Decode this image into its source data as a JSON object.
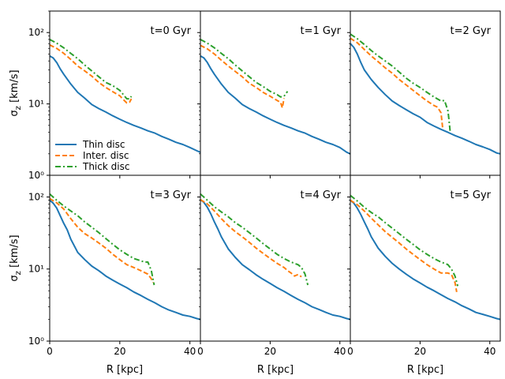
{
  "chart_data": {
    "type": "line",
    "layout": "2x3 grid of panels with shared axes",
    "xlabel": "R [kpc]",
    "ylabel": "σ_z [km/s]",
    "xlim": [
      0,
      43
    ],
    "ylim": [
      1,
      200
    ],
    "yscale": "log",
    "x_ticks": [
      {
        "value": 0,
        "label": "0"
      },
      {
        "value": 20,
        "label": "20"
      },
      {
        "value": 40,
        "label": "40"
      }
    ],
    "y_ticks": [
      {
        "value": 1,
        "label": "10⁰"
      },
      {
        "value": 10,
        "label": "10¹"
      },
      {
        "value": 100,
        "label": "10²"
      }
    ],
    "legend": {
      "location": "lower-left of first panel",
      "entries": [
        {
          "label": "Thin disc",
          "color": "#1f77b4",
          "dash": "solid"
        },
        {
          "label": "Inter. disc",
          "color": "#ff7f0e",
          "dash": "dashed"
        },
        {
          "label": "Thick disc",
          "color": "#2ca02c",
          "dash": "dashdot"
        }
      ]
    },
    "panels": [
      {
        "label": "t=0 Gyr",
        "series": [
          {
            "name": "Thin disc",
            "x": [
              0,
              1,
              2,
              3,
              4,
              6,
              8,
              10,
              12,
              14,
              16,
              18,
              20,
              22,
              24,
              26,
              28,
              30,
              32,
              34,
              36,
              38,
              40,
              42,
              43
            ],
            "y": [
              47,
              44,
              38,
              31,
              26,
              19,
              14.5,
              12,
              9.8,
              8.6,
              7.7,
              6.8,
              6.1,
              5.5,
              5.0,
              4.6,
              4.2,
              3.9,
              3.5,
              3.2,
              2.9,
              2.7,
              2.45,
              2.2,
              2.1
            ]
          },
          {
            "name": "Inter. disc",
            "x": [
              0,
              2,
              4,
              6,
              8,
              10,
              12,
              14,
              16,
              18,
              20,
              21,
              22,
              22.8,
              23.3
            ],
            "y": [
              67,
              60,
              51,
              42,
              34,
              29,
              24.5,
              20,
              17,
              14.8,
              13,
              11.5,
              10.3,
              10.6,
              11.8
            ]
          },
          {
            "name": "Thick disc",
            "x": [
              0,
              2,
              4,
              6,
              8,
              10,
              12,
              14,
              16,
              18,
              20,
              21,
              22,
              22.8,
              23.3
            ],
            "y": [
              80,
              71,
              61,
              51,
              43,
              35,
              29,
              24,
              20,
              18,
              15.5,
              13.5,
              11.8,
              11.8,
              12.8
            ]
          }
        ]
      },
      {
        "label": "t=1 Gyr",
        "series": [
          {
            "name": "Thin disc",
            "x": [
              0,
              1,
              2,
              3,
              4,
              6,
              8,
              10,
              12,
              14,
              16,
              18,
              20,
              22,
              24,
              26,
              28,
              30,
              32,
              34,
              36,
              38,
              40,
              42,
              43
            ],
            "y": [
              47,
              44,
              38,
              31,
              26,
              19,
              14.5,
              12,
              9.8,
              8.6,
              7.7,
              6.8,
              6.1,
              5.5,
              5.0,
              4.6,
              4.2,
              3.9,
              3.5,
              3.2,
              2.9,
              2.7,
              2.45,
              2.1,
              2.0
            ]
          },
          {
            "name": "Inter. disc",
            "x": [
              0,
              2,
              4,
              6,
              8,
              10,
              12,
              14,
              16,
              18,
              20,
              22,
              23,
              23.5,
              24
            ],
            "y": [
              66,
              59,
              50,
              41,
              34,
              28.5,
              24,
              19.5,
              17,
              14.5,
              12.8,
              11.2,
              10.5,
              8.8,
              12
            ]
          },
          {
            "name": "Thick disc",
            "x": [
              0,
              2,
              4,
              6,
              8,
              10,
              12,
              14,
              16,
              18,
              20,
              22,
              23,
              24,
              24.5,
              25
            ],
            "y": [
              80,
              71,
              61,
              51,
              43,
              35,
              29,
              24,
              20,
              17.5,
              15,
              13.5,
              12.5,
              12.8,
              14,
              15
            ]
          }
        ]
      },
      {
        "label": "t=2 Gyr",
        "series": [
          {
            "name": "Thin disc",
            "x": [
              0,
              1,
              2,
              3,
              4,
              6,
              8,
              10,
              12,
              14,
              16,
              18,
              20,
              22,
              24,
              26,
              28,
              30,
              32,
              34,
              36,
              38,
              40,
              42,
              43
            ],
            "y": [
              70,
              62,
              50,
              38,
              30,
              22,
              17,
              13.5,
              11,
              9.5,
              8.3,
              7.3,
              6.5,
              5.5,
              4.9,
              4.4,
              4.0,
              3.6,
              3.3,
              3.0,
              2.7,
              2.5,
              2.3,
              2.05,
              2.0
            ]
          },
          {
            "name": "Inter. disc",
            "x": [
              0,
              2,
              4,
              6,
              8,
              10,
              12,
              14,
              16,
              18,
              20,
              22,
              24,
              25,
              26,
              26.5
            ],
            "y": [
              83,
              72,
              58,
              47,
              39,
              32,
              27,
              22,
              18.5,
              15.5,
              13,
              11,
              9.5,
              9.0,
              7.5,
              4.5
            ]
          },
          {
            "name": "Thick disc",
            "x": [
              0,
              2,
              4,
              6,
              8,
              10,
              12,
              14,
              16,
              18,
              20,
              22,
              24,
              26,
              27,
              28,
              28.3,
              28.6
            ],
            "y": [
              95,
              82,
              68,
              56,
              47,
              40,
              34,
              28,
              23,
              19.5,
              17,
              14.5,
              12.5,
              11,
              11.2,
              8,
              6,
              4.2
            ]
          }
        ]
      },
      {
        "label": "t=3 Gyr",
        "series": [
          {
            "name": "Thin disc",
            "x": [
              0,
              1,
              2,
              3,
              4,
              5,
              6,
              8,
              10,
              12,
              14,
              16,
              18,
              20,
              22,
              24,
              26,
              28,
              30,
              32,
              34,
              36,
              38,
              40,
              42,
              43
            ],
            "y": [
              90,
              82,
              70,
              55,
              43,
              35,
              26,
              17,
              13.5,
              11,
              9.5,
              8,
              7,
              6.2,
              5.5,
              4.8,
              4.3,
              3.8,
              3.4,
              3.0,
              2.7,
              2.5,
              2.3,
              2.2,
              2.05,
              2.0
            ]
          },
          {
            "name": "Inter. disc",
            "x": [
              0,
              2,
              4,
              6,
              8,
              10,
              12,
              14,
              16,
              18,
              20,
              22,
              24,
              26,
              28,
              29,
              29.5
            ],
            "y": [
              95,
              83,
              68,
              50,
              38,
              31,
              27,
              23,
              19.5,
              16,
              13.5,
              11.5,
              10.5,
              9.5,
              8.5,
              7.3,
              6.5
            ]
          },
          {
            "name": "Thick disc",
            "x": [
              0,
              2,
              4,
              6,
              8,
              10,
              12,
              14,
              16,
              18,
              20,
              22,
              24,
              26,
              27,
              28,
              29,
              29.8
            ],
            "y": [
              110,
              90,
              75,
              64,
              55,
              45,
              38,
              32,
              26.5,
              22,
              18.5,
              16,
              14,
              13,
              12.5,
              12.5,
              9.5,
              6.0
            ]
          }
        ]
      },
      {
        "label": "t=4 Gyr",
        "series": [
          {
            "name": "Thin disc",
            "x": [
              0,
              1,
              2,
              3,
              4,
              5,
              6,
              8,
              10,
              12,
              14,
              16,
              18,
              20,
              22,
              24,
              26,
              28,
              30,
              32,
              34,
              36,
              38,
              40,
              42,
              43
            ],
            "y": [
              92,
              84,
              72,
              58,
              45,
              36,
              28,
              19,
              14.5,
              11.5,
              9.8,
              8.3,
              7.2,
              6.3,
              5.5,
              4.9,
              4.3,
              3.8,
              3.4,
              3.0,
              2.75,
              2.5,
              2.3,
              2.2,
              2.05,
              2.0
            ]
          },
          {
            "name": "Inter. disc",
            "x": [
              0,
              2,
              4,
              6,
              8,
              10,
              12,
              14,
              16,
              18,
              20,
              22,
              24,
              25,
              26,
              27,
              28,
              29
            ],
            "y": [
              92,
              80,
              64,
              50,
              40,
              33,
              28,
              23.5,
              19.5,
              16.5,
              14,
              12,
              10.5,
              9.5,
              8.8,
              8.0,
              8.4,
              7.8
            ]
          },
          {
            "name": "Thick disc",
            "x": [
              0,
              2,
              4,
              6,
              8,
              10,
              12,
              14,
              16,
              18,
              20,
              22,
              24,
              26,
              28,
              29,
              30,
              30.8
            ],
            "y": [
              110,
              90,
              73,
              62,
              53,
              44,
              38,
              32,
              27,
              22.5,
              19,
              16,
              14,
              12.5,
              11.5,
              10.5,
              8.5,
              6.0
            ]
          }
        ]
      },
      {
        "label": "t=5 Gyr",
        "series": [
          {
            "name": "Thin disc",
            "x": [
              0,
              1,
              2,
              3,
              4,
              5,
              6,
              8,
              10,
              12,
              14,
              16,
              18,
              20,
              22,
              24,
              26,
              28,
              30,
              32,
              34,
              36,
              38,
              40,
              42,
              43
            ],
            "y": [
              90,
              82,
              70,
              57,
              45,
              36,
              28,
              19.5,
              15,
              12,
              10,
              8.5,
              7.3,
              6.4,
              5.6,
              5.0,
              4.4,
              3.9,
              3.5,
              3.1,
              2.8,
              2.5,
              2.35,
              2.2,
              2.05,
              2.0
            ]
          },
          {
            "name": "Inter. disc",
            "x": [
              0,
              2,
              4,
              6,
              8,
              10,
              12,
              14,
              16,
              18,
              20,
              22,
              24,
              26,
              28,
              29,
              30,
              30.5
            ],
            "y": [
              90,
              78,
              64,
              51,
              41,
              33,
              27.5,
              23,
              19,
              16,
              13.5,
              11.5,
              10,
              8.8,
              8.8,
              8.4,
              6.5,
              4.8
            ]
          },
          {
            "name": "Thick disc",
            "x": [
              0,
              2,
              4,
              6,
              8,
              10,
              12,
              14,
              16,
              18,
              20,
              22,
              24,
              26,
              27,
              28,
              29,
              30,
              30.8
            ],
            "y": [
              105,
              88,
              72,
              61,
              53,
              44,
              37,
              31,
              26,
              22,
              18.5,
              16,
              14,
              12.5,
              12,
              11.5,
              10,
              8,
              5.8
            ]
          }
        ]
      }
    ]
  }
}
